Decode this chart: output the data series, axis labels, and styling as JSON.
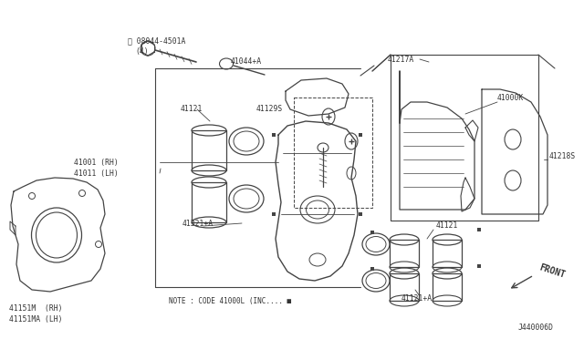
{
  "bg_color": "#ffffff",
  "line_color": "#444444",
  "text_color": "#333333",
  "diagram_id": "J440006D",
  "note_text": "NOTE : CODE 41000L (INC.... ■",
  "front_label": "FRONT",
  "figsize": [
    6.4,
    3.72
  ],
  "dpi": 100
}
